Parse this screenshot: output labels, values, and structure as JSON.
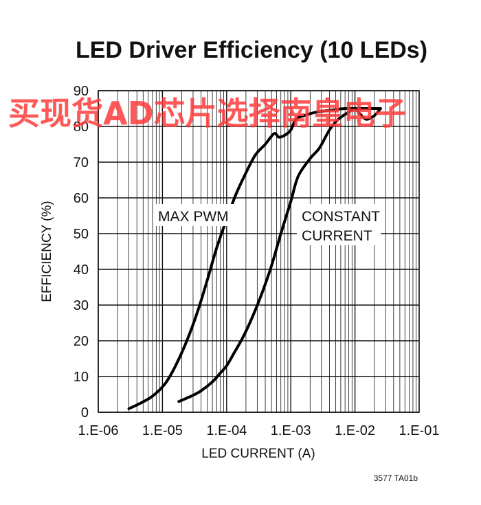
{
  "chart_data": {
    "type": "line",
    "title": "LED Driver Efficiency (10 LEDs)",
    "xlabel": "LED CURRENT (A)",
    "ylabel": "EFFICIENCY (%)",
    "x_scale": "log",
    "xlim": [
      1e-06,
      0.1
    ],
    "ylim": [
      0,
      90
    ],
    "x_tick_labels": [
      "1.E-06",
      "1.E-05",
      "1.E-04",
      "1.E-03",
      "1.E-02",
      "1.E-01"
    ],
    "x_ticks": [
      1e-06,
      1e-05,
      0.0001,
      0.001,
      0.01,
      0.1
    ],
    "y_tick_labels": [
      "0",
      "10",
      "20",
      "30",
      "40",
      "50",
      "60",
      "70",
      "80",
      "90"
    ],
    "y_ticks": [
      0,
      10,
      20,
      30,
      40,
      50,
      60,
      70,
      80,
      90
    ],
    "grid": true,
    "series": [
      {
        "name": "MAX PWM",
        "x": [
          3e-06,
          4.5e-06,
          7e-06,
          1.1e-05,
          1.6e-05,
          2.4e-05,
          3.5e-05,
          5e-05,
          7e-05,
          0.0001,
          0.00014,
          0.0002,
          0.00028,
          0.0004,
          0.00055,
          0.00065,
          0.0008,
          0.001,
          0.0012,
          0.0016,
          0.0025,
          0.004,
          0.007,
          0.012,
          0.025
        ],
        "y": [
          1,
          2.5,
          4.5,
          8,
          13,
          20,
          28,
          37,
          46,
          54,
          61,
          67,
          72,
          75,
          78,
          77,
          77.5,
          79,
          82,
          83,
          84,
          84.5,
          85,
          85,
          85
        ]
      },
      {
        "name": "CONSTANT CURRENT",
        "x": [
          1.8e-05,
          2.8e-05,
          4e-05,
          6e-05,
          8e-05,
          0.0001,
          0.00013,
          0.00018,
          0.00025,
          0.00035,
          0.0005,
          0.0007,
          0.001,
          0.0013,
          0.002,
          0.0028,
          0.004,
          0.0055,
          0.008,
          0.01,
          0.012,
          0.015,
          0.02,
          0.025
        ],
        "y": [
          3,
          4.5,
          6,
          8.5,
          11,
          13,
          16.5,
          21,
          26.5,
          33,
          41,
          50,
          59,
          66,
          71,
          74,
          79,
          82,
          84,
          85,
          83.5,
          82,
          83,
          85
        ]
      }
    ],
    "annotations": [
      {
        "text": "MAX PWM",
        "series": 0
      },
      {
        "text": "CONSTANT",
        "series": 1
      },
      {
        "text": "CURRENT",
        "series": 1
      }
    ],
    "footnote": "3577 TA01b"
  },
  "watermark": "买现货AD芯片选择南皇电子",
  "colors": {
    "line": "#000000",
    "grid": "#111111",
    "watermark": "#ff3b3b",
    "background": "#ffffff"
  }
}
